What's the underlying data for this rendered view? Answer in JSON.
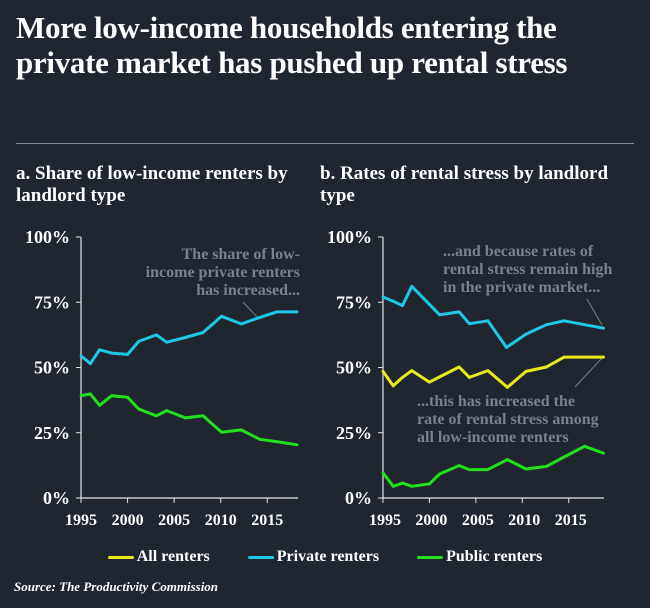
{
  "title": "More low-income households entering the private market has pushed up rental stress",
  "source": "Source: The Productivity Commission",
  "colors": {
    "background": "#1f2630",
    "all": "#e8ea1a",
    "private": "#1fc8e6",
    "public": "#22e01c",
    "annotation": "#7b8089",
    "text": "#ffffff"
  },
  "legend": [
    {
      "label": "All renters",
      "color": "#e8ea1a"
    },
    {
      "label": "Private renters",
      "color": "#1fc8e6"
    },
    {
      "label": "Public renters",
      "color": "#22e01c"
    }
  ],
  "chart_data": [
    {
      "type": "line",
      "title": "a. Share of low-income renters by landlord type",
      "xlim": [
        1995,
        2018.3
      ],
      "ylim": [
        0,
        100
      ],
      "xticks": [
        1995,
        2000,
        2005,
        2010,
        2015
      ],
      "yticks": [
        0,
        25,
        50,
        75,
        100
      ],
      "ytick_labels": [
        "0%",
        "25%",
        "50%",
        "75%",
        "100%"
      ],
      "annotations": [
        {
          "text": [
            "The share of low-",
            "income private renters",
            "has increased..."
          ]
        }
      ],
      "series": [
        {
          "name": "Private renters",
          "key": "private",
          "x": [
            1995,
            1996,
            1997,
            1998.3,
            2000,
            2001.2,
            2003.1,
            2004.2,
            2006.2,
            2008.1,
            2010.1,
            2012.2,
            2014.2,
            2016,
            2018.2
          ],
          "y": [
            54.5,
            51.5,
            56.8,
            55.5,
            55,
            60,
            62.5,
            59.7,
            61.5,
            63.4,
            69.6,
            66.7,
            69.2,
            71.3,
            71.3
          ]
        },
        {
          "name": "Public renters",
          "key": "public",
          "x": [
            1995,
            1996,
            1997,
            1998.3,
            2000,
            2001.2,
            2003.1,
            2004.2,
            2006.2,
            2008.1,
            2010.1,
            2012.2,
            2014.2,
            2016,
            2018.2
          ],
          "y": [
            39.2,
            39.9,
            35.5,
            39.2,
            38.6,
            34.1,
            31.5,
            33.5,
            30.7,
            31.5,
            25.2,
            26.1,
            22.5,
            21.6,
            20.4
          ]
        }
      ]
    },
    {
      "type": "line",
      "title": "b. Rates of rental stress by landlord type",
      "xlim": [
        1995,
        2018.8
      ],
      "ylim": [
        0,
        100
      ],
      "xticks": [
        1995,
        2000,
        2005,
        2010,
        2015
      ],
      "yticks": [
        0,
        25,
        50,
        75,
        100
      ],
      "ytick_labels": [
        "0%",
        "25%",
        "50%",
        "75%",
        "100%"
      ],
      "annotations": [
        {
          "text": [
            "...and because rates of",
            "rental stress remain high",
            "in the private market..."
          ]
        },
        {
          "text": [
            "...this has increased the",
            "rate of rental stress among",
            "all low-income renters"
          ]
        }
      ],
      "series": [
        {
          "name": "Private renters",
          "key": "private",
          "x": [
            1995,
            1996.1,
            1997.1,
            1998.1,
            2001.1,
            2003.2,
            2004.3,
            2006.3,
            2008.3,
            2010.4,
            2012.6,
            2014.5,
            2016.7,
            2018.75
          ],
          "y": [
            77,
            75.4,
            73.7,
            81.1,
            70.2,
            71.3,
            66.8,
            67.9,
            57.7,
            62.8,
            66.4,
            67.9,
            66.4,
            65.1
          ]
        },
        {
          "name": "All renters",
          "key": "all",
          "x": [
            1995,
            1996.1,
            1997.1,
            1998.1,
            2000,
            2003.2,
            2004.3,
            2006.3,
            2008.4,
            2010.4,
            2012.6,
            2014.5,
            2018.75
          ],
          "y": [
            48.5,
            43,
            46.2,
            48.8,
            44.4,
            50.2,
            46.2,
            48.8,
            42.4,
            48.5,
            50.2,
            54,
            54
          ]
        },
        {
          "name": "Public renters",
          "key": "public",
          "x": [
            1995,
            1996.1,
            1997.1,
            1998.1,
            2000,
            2001.1,
            2003.2,
            2004.3,
            2006.3,
            2008.4,
            2010.4,
            2012.6,
            2014.5,
            2016.7,
            2018.75
          ],
          "y": [
            9.6,
            4.5,
            5.7,
            4.5,
            5.4,
            9.2,
            12.4,
            10.9,
            10.9,
            14.7,
            11.1,
            12.1,
            15.7,
            19.8,
            17.2
          ]
        }
      ]
    }
  ]
}
